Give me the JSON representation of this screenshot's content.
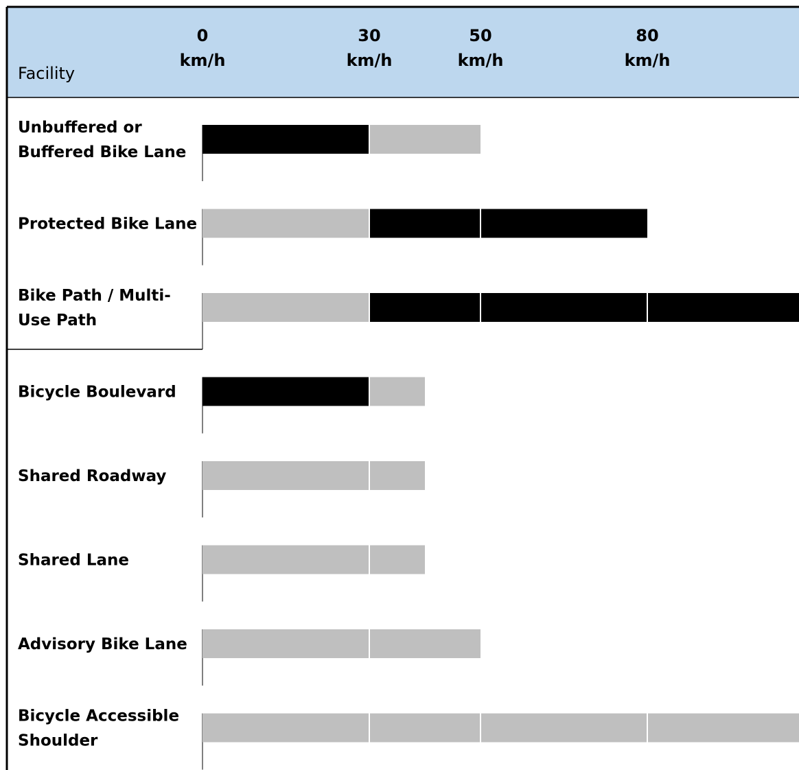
{
  "header": {
    "facility_label": "Facility",
    "unit": "km/h",
    "speeds": [
      "0",
      "30",
      "50",
      "80"
    ]
  },
  "colors": {
    "header_bg": "#bdd7ee",
    "preferred": "#000000",
    "acceptable": "#bfbfbf"
  },
  "chart_data": {
    "type": "bar",
    "xlabel": "",
    "ylabel": "Facility",
    "x_ticks": [
      0,
      30,
      50,
      80
    ],
    "xlim": [
      0,
      80
    ],
    "x_axis_extends_beyond_80": true,
    "legend": "none",
    "rows": [
      {
        "label_lines": [
          "Unbuffered or",
          "Buffered Bike Lane"
        ],
        "segments": [
          {
            "from": 0,
            "to": 30,
            "level": "preferred"
          },
          {
            "from": 30,
            "to": 50,
            "level": "acceptable"
          }
        ]
      },
      {
        "label_lines": [
          "Protected Bike Lane"
        ],
        "segments": [
          {
            "from": 0,
            "to": 30,
            "level": "acceptable"
          },
          {
            "from": 30,
            "to": 50,
            "level": "preferred"
          },
          {
            "from": 50,
            "to": 80,
            "level": "preferred"
          }
        ]
      },
      {
        "label_lines": [
          "Bike Path / Multi-",
          "Use Path"
        ],
        "segments": [
          {
            "from": 0,
            "to": 30,
            "level": "acceptable"
          },
          {
            "from": 30,
            "to": 50,
            "level": "preferred"
          },
          {
            "from": 50,
            "to": 80,
            "level": "preferred"
          },
          {
            "from": 80,
            "to": "max",
            "level": "preferred"
          }
        ]
      },
      {
        "label_lines": [
          "Bicycle Boulevard"
        ],
        "segments": [
          {
            "from": 0,
            "to": 30,
            "level": "preferred"
          },
          {
            "from": 30,
            "to": 40,
            "level": "acceptable"
          }
        ]
      },
      {
        "label_lines": [
          "Shared Roadway"
        ],
        "segments": [
          {
            "from": 0,
            "to": 30,
            "level": "acceptable"
          },
          {
            "from": 30,
            "to": 40,
            "level": "acceptable"
          }
        ]
      },
      {
        "label_lines": [
          "Shared Lane"
        ],
        "segments": [
          {
            "from": 0,
            "to": 30,
            "level": "acceptable"
          },
          {
            "from": 30,
            "to": 40,
            "level": "acceptable"
          }
        ]
      },
      {
        "label_lines": [
          "Advisory Bike Lane"
        ],
        "segments": [
          {
            "from": 0,
            "to": 30,
            "level": "acceptable"
          },
          {
            "from": 30,
            "to": 50,
            "level": "acceptable"
          }
        ]
      },
      {
        "label_lines": [
          "Bicycle Accessible",
          "Shoulder"
        ],
        "segments": [
          {
            "from": 0,
            "to": 30,
            "level": "acceptable"
          },
          {
            "from": 30,
            "to": 50,
            "level": "acceptable"
          },
          {
            "from": 50,
            "to": 80,
            "level": "acceptable"
          },
          {
            "from": 80,
            "to": "max",
            "level": "acceptable"
          }
        ]
      }
    ]
  }
}
